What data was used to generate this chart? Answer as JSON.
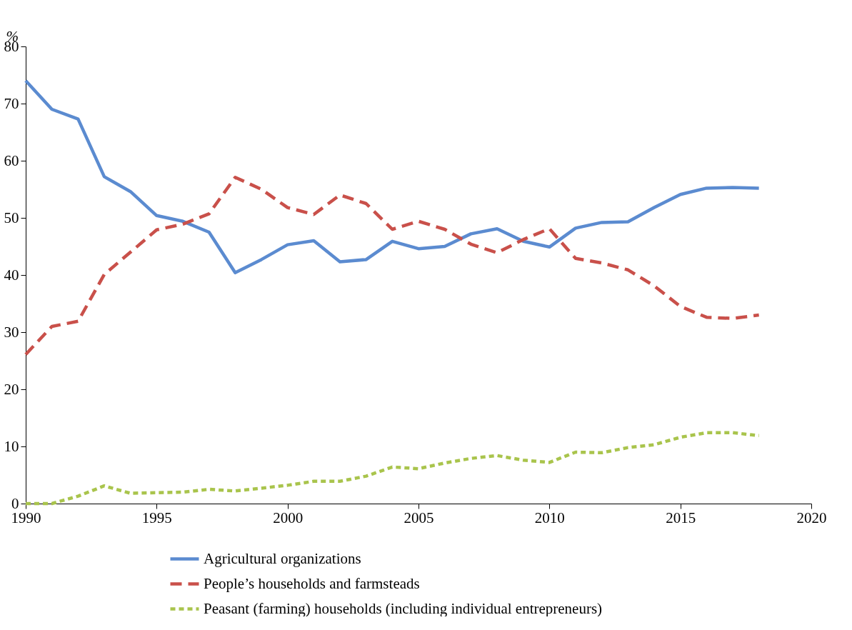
{
  "chart_data": {
    "type": "line",
    "ylabel": "%",
    "x": [
      1990,
      1991,
      1992,
      1993,
      1994,
      1995,
      1996,
      1997,
      1998,
      1999,
      2000,
      2001,
      2002,
      2003,
      2004,
      2005,
      2006,
      2007,
      2008,
      2009,
      2010,
      2011,
      2012,
      2013,
      2014,
      2015,
      2016,
      2017,
      2018
    ],
    "series": [
      {
        "name": "Agricultural organizations",
        "color": "#5b8bd0",
        "line_style": "solid",
        "values": [
          74.0,
          69.0,
          67.3,
          57.2,
          54.6,
          50.4,
          49.4,
          47.5,
          40.4,
          42.7,
          45.3,
          46.0,
          42.3,
          42.7,
          45.9,
          44.6,
          45.0,
          47.2,
          48.1,
          45.9,
          44.9,
          48.2,
          49.2,
          49.3,
          51.8,
          54.1,
          55.2,
          55.3,
          55.2
        ]
      },
      {
        "name": "People’s households and farmsteads",
        "color": "#c9504a",
        "line_style": "dashed",
        "values": [
          26.1,
          31.0,
          31.9,
          40.1,
          44.0,
          47.9,
          48.9,
          50.7,
          57.1,
          55.0,
          51.8,
          50.6,
          54.0,
          52.5,
          48.0,
          49.4,
          48.0,
          45.4,
          43.9,
          46.2,
          48.1,
          42.9,
          42.1,
          40.9,
          38.1,
          34.5,
          32.6,
          32.4,
          33.0
        ]
      },
      {
        "name": "Peasant (farming) households (including individual entrepreneurs)",
        "color": "#a9c44c",
        "line_style": "dotted",
        "values": [
          0,
          0,
          1.3,
          3.1,
          1.8,
          1.9,
          2.0,
          2.5,
          2.2,
          2.7,
          3.2,
          3.9,
          3.9,
          4.8,
          6.4,
          6.1,
          7.1,
          7.9,
          8.4,
          7.6,
          7.2,
          9.0,
          8.9,
          9.8,
          10.3,
          11.6,
          12.4,
          12.4,
          11.9
        ]
      }
    ],
    "xlim": [
      1990,
      2020
    ],
    "xticks": [
      1990,
      1995,
      2000,
      2005,
      2010,
      2015,
      2020
    ],
    "ylim": [
      0,
      80
    ],
    "yticks": [
      0,
      10,
      20,
      30,
      40,
      50,
      60,
      70,
      80
    ],
    "grid": false,
    "legend": "bottom",
    "marker": "none"
  }
}
